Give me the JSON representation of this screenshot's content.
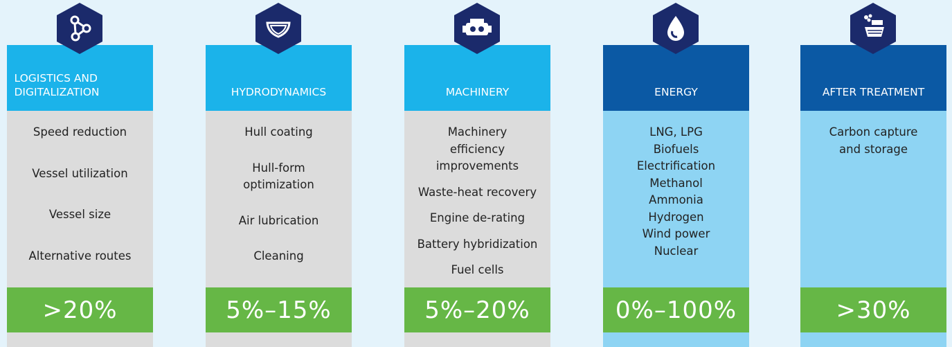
{
  "columns": [
    {
      "title": "LOGISTICS AND DIGITALIZATION",
      "items": [
        "Speed reduction",
        "Vessel utilization",
        "Vessel size",
        "Alternative routes"
      ],
      "value": ">20%"
    },
    {
      "title": "HYDRODYNAMICS",
      "items": [
        "Hull coating",
        "Hull-form optimization",
        "Air lubrication",
        "Cleaning"
      ],
      "value": "5%–15%"
    },
    {
      "title": "MACHINERY",
      "items": [
        "Machinery efficiency improvements",
        "Waste-heat recovery",
        "Engine de-rating",
        "Battery hybridization",
        "Fuel cells"
      ],
      "value": "5%–20%"
    },
    {
      "title": "ENERGY",
      "items": [
        "LNG, LPG",
        "Biofuels",
        "Electrification",
        "Methanol",
        "Ammonia",
        "Hydrogen",
        "Wind power",
        "Nuclear"
      ],
      "value": "0%–100%"
    },
    {
      "title": "AFTER TREATMENT",
      "items": [
        "Carbon capture and storage"
      ],
      "value": ">30%"
    }
  ]
}
